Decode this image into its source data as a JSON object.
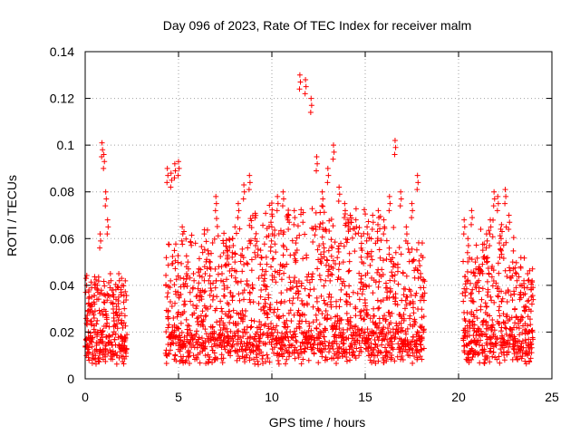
{
  "chart_data": {
    "type": "scatter",
    "title": "Day 096 of 2023, Rate Of TEC Index for receiver malm",
    "xlabel": "GPS time / hours",
    "ylabel": "ROTI / TECUs",
    "xlim": [
      0,
      25
    ],
    "ylim": [
      0,
      0.14
    ],
    "xticks": [
      0,
      5,
      10,
      15,
      20,
      25
    ],
    "xtick_labels": [
      "0",
      "5",
      "10",
      "15",
      "20",
      "25"
    ],
    "yticks": [
      0,
      0.02,
      0.04,
      0.06,
      0.08,
      0.1,
      0.12,
      0.14
    ],
    "ytick_labels": [
      "0",
      "0.02",
      "0.04",
      "0.06",
      "0.08",
      "0.1",
      "0.12",
      "0.14"
    ],
    "grid": true,
    "marker": "plus",
    "color": "#ff0000",
    "observation_windows_hours": [
      [
        0.0,
        2.25
      ],
      [
        4.3,
        18.2
      ],
      [
        20.2,
        24.0
      ]
    ],
    "series": [
      {
        "x": [
          0.05,
          0.2,
          0.35,
          0.5,
          0.65,
          0.8,
          0.9,
          1.0,
          1.1,
          1.2,
          1.35,
          1.5,
          1.65,
          1.8,
          1.95,
          2.1,
          4.4,
          4.6,
          4.8,
          5.0,
          5.2,
          5.5,
          5.8,
          6.1,
          6.4,
          6.7,
          7.0,
          7.3,
          7.6,
          7.9,
          8.2,
          8.5,
          8.8,
          9.1,
          9.4,
          9.7,
          10.0,
          10.3,
          10.6,
          10.9,
          11.2,
          11.5,
          11.8,
          12.1,
          12.4,
          12.7,
          13.0,
          13.3,
          13.6,
          13.9,
          14.2,
          14.5,
          14.8,
          15.1,
          15.4,
          15.7,
          16.0,
          16.3,
          16.6,
          16.9,
          17.2,
          17.5,
          17.8,
          18.1,
          20.3,
          20.5,
          20.7,
          20.9,
          21.1,
          21.3,
          21.5,
          21.7,
          21.9,
          22.1,
          22.3,
          22.5,
          22.7,
          22.9,
          23.1,
          23.3,
          23.5,
          23.7,
          23.9
        ],
        "y": [
          0.043,
          0.038,
          0.035,
          0.032,
          0.04,
          0.062,
          0.101,
          0.096,
          0.08,
          0.068,
          0.045,
          0.038,
          0.034,
          0.045,
          0.043,
          0.03,
          0.09,
          0.088,
          0.092,
          0.093,
          0.065,
          0.05,
          0.045,
          0.047,
          0.048,
          0.05,
          0.078,
          0.048,
          0.055,
          0.06,
          0.075,
          0.083,
          0.087,
          0.06,
          0.055,
          0.052,
          0.065,
          0.078,
          0.08,
          0.07,
          0.072,
          0.13,
          0.128,
          0.12,
          0.095,
          0.08,
          0.09,
          0.1,
          0.082,
          0.075,
          0.07,
          0.068,
          0.058,
          0.065,
          0.07,
          0.072,
          0.068,
          0.078,
          0.102,
          0.08,
          0.065,
          0.075,
          0.087,
          0.042,
          0.068,
          0.06,
          0.072,
          0.05,
          0.048,
          0.055,
          0.062,
          0.068,
          0.08,
          0.078,
          0.066,
          0.081,
          0.07,
          0.05,
          0.045,
          0.04,
          0.042,
          0.045,
          0.035
        ]
      }
    ]
  }
}
